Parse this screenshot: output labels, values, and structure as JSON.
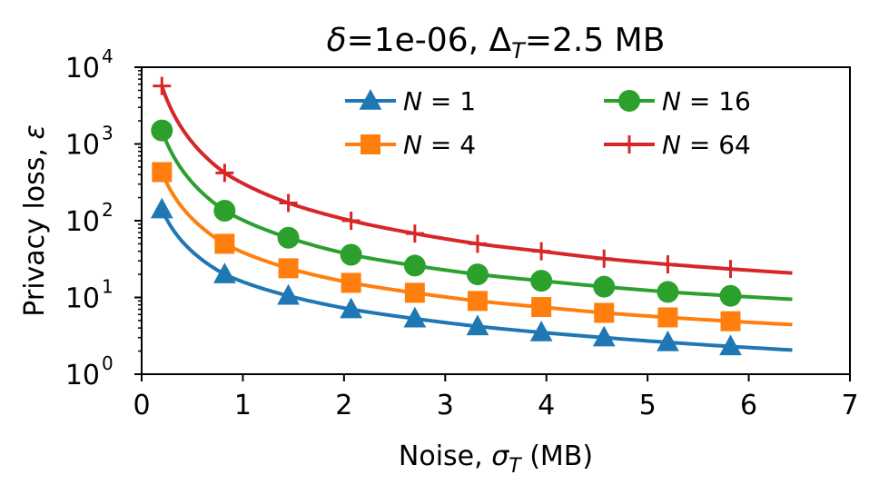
{
  "chart_data": {
    "type": "line",
    "title": "δ=1e-06, Δ_T=2.5 MB",
    "title_parts": {
      "delta_symbol": "δ",
      "delta_value": "=1e-06, ",
      "Delta_symbol": "Δ",
      "Delta_sub": "T",
      "Delta_value": "=2.5 MB"
    },
    "xlabel": "Noise, σ_T (MB)",
    "xlabel_parts": {
      "prefix": "Noise, ",
      "symbol": "σ",
      "sub": "T",
      "suffix": " (MB)"
    },
    "ylabel": "Privacy loss, ε",
    "ylabel_parts": {
      "prefix": "Privacy loss, ",
      "symbol": "ε"
    },
    "xlim": [
      0,
      7
    ],
    "ylim": [
      1,
      10000
    ],
    "yscale": "log",
    "grid": false,
    "legend_position": "top-right",
    "x_ticks": [
      0,
      1,
      2,
      3,
      4,
      5,
      6,
      7
    ],
    "x_tick_labels": [
      "0",
      "1",
      "2",
      "3",
      "4",
      "5",
      "6",
      "7"
    ],
    "y_ticks": [
      1,
      10,
      100,
      1000,
      10000
    ],
    "y_tick_labels": [
      {
        "base": "10",
        "exp": "0"
      },
      {
        "base": "10",
        "exp": "1"
      },
      {
        "base": "10",
        "exp": "2"
      },
      {
        "base": "10",
        "exp": "3"
      },
      {
        "base": "10",
        "exp": "4"
      }
    ],
    "curve_x_range": [
      0.2,
      6.43
    ],
    "marker_x": [
      0.2,
      0.82,
      1.45,
      2.07,
      2.7,
      3.32,
      3.95,
      4.57,
      5.2,
      5.82
    ],
    "series": [
      {
        "name": "N = 1",
        "name_parts": {
          "var": "N",
          "rest": " = 1"
        },
        "color": "#1f77b4",
        "marker": "triangle",
        "values": [
          140,
          20,
          10.5,
          7,
          5.3,
          4.2,
          3.5,
          3.0,
          2.6,
          2.3
        ]
      },
      {
        "name": "N = 4",
        "name_parts": {
          "var": "N",
          "rest": " = 4"
        },
        "color": "#ff7f0e",
        "marker": "square",
        "values": [
          430,
          50,
          24,
          15.5,
          11.5,
          9.0,
          7.5,
          6.3,
          5.5,
          4.9
        ]
      },
      {
        "name": "N = 16",
        "name_parts": {
          "var": "N",
          "rest": " = 16"
        },
        "color": "#2ca02c",
        "marker": "circle",
        "values": [
          1500,
          135,
          60,
          36,
          26,
          20,
          16.5,
          13.8,
          11.8,
          10.5
        ]
      },
      {
        "name": "N = 64",
        "name_parts": {
          "var": "N",
          "rest": " = 64"
        },
        "color": "#d62728",
        "marker": "plus",
        "values": [
          5700,
          420,
          170,
          100,
          68,
          50,
          40,
          32,
          27,
          23.5
        ]
      }
    ]
  }
}
